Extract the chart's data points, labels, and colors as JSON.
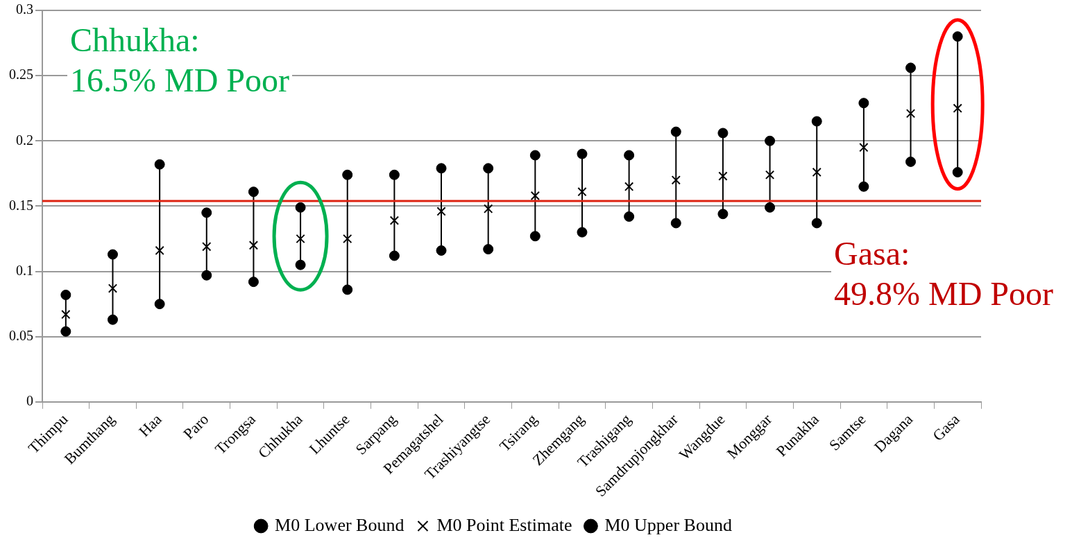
{
  "chart_data": {
    "type": "scatter",
    "categories": [
      "Thimpu",
      "Bumthang",
      "Haa",
      "Paro",
      "Trongsa",
      "Chhukha",
      "Lhuntse",
      "Sarpang",
      "Pemagatshel",
      "Trashiyangtse",
      "Tsirang",
      "Zhemgang",
      "Trashigang",
      "Samdrupjongkhar",
      "Wangdue",
      "Monggar",
      "Punakha",
      "Samtse",
      "Dagana",
      "Gasa"
    ],
    "series": [
      {
        "name": "M0 Lower Bound",
        "color": "#000000",
        "marker": "circle",
        "values": [
          0.054,
          0.063,
          0.075,
          0.097,
          0.092,
          0.105,
          0.086,
          0.112,
          0.116,
          0.117,
          0.127,
          0.13,
          0.142,
          0.137,
          0.144,
          0.149,
          0.137,
          0.165,
          0.184,
          0.176
        ]
      },
      {
        "name": "M0 Point Estimate",
        "color": "#000000",
        "marker": "cross",
        "values": [
          0.067,
          0.087,
          0.116,
          0.119,
          0.12,
          0.125,
          0.125,
          0.139,
          0.146,
          0.148,
          0.158,
          0.161,
          0.165,
          0.17,
          0.173,
          0.174,
          0.176,
          0.195,
          0.221,
          0.225
        ]
      },
      {
        "name": "M0 Upper Bound",
        "color": "#000000",
        "marker": "circle",
        "values": [
          0.082,
          0.113,
          0.182,
          0.145,
          0.161,
          0.149,
          0.174,
          0.174,
          0.179,
          0.179,
          0.189,
          0.19,
          0.189,
          0.207,
          0.206,
          0.2,
          0.215,
          0.229,
          0.256,
          0.28
        ]
      }
    ],
    "ylim": [
      0,
      0.3
    ],
    "yticks": [
      0,
      0.05,
      0.1,
      0.15,
      0.2,
      0.25,
      0.3
    ],
    "grid": "y",
    "legend": "bottom",
    "ref_lines": [
      {
        "axis": "y",
        "value": 0.154,
        "label": null,
        "color": "#dd2211"
      }
    ],
    "annotations": [
      "Chhukha:\n16.5% MD Poor",
      "Gasa:\n49.8% MD Poor"
    ]
  }
}
